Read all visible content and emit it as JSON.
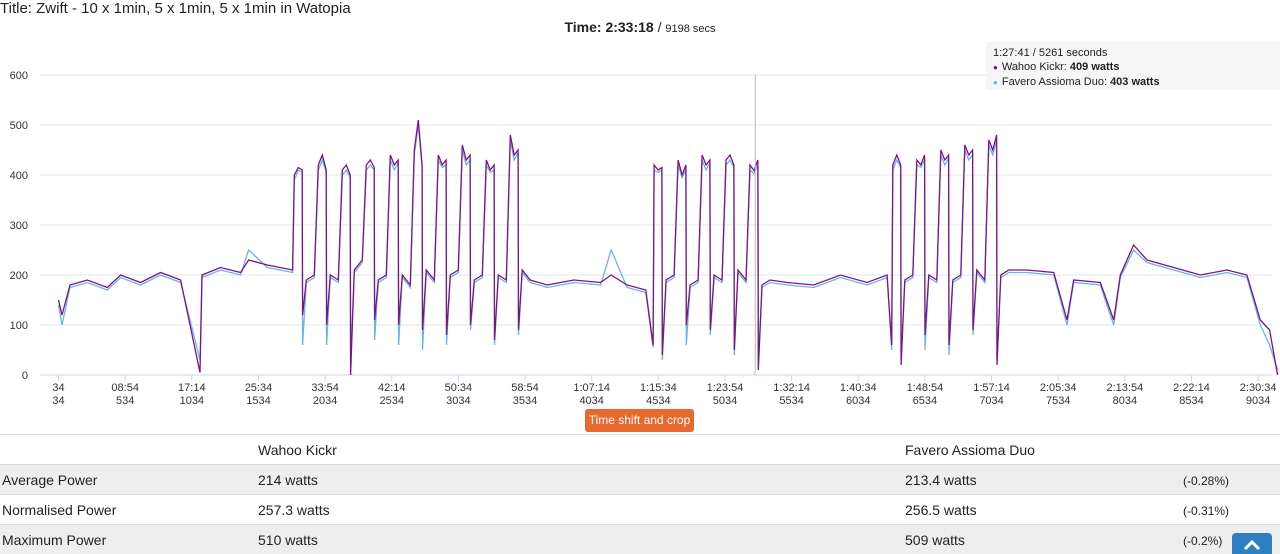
{
  "title": "Title: Zwift - 10 x 1min, 5 x 1min, 5 x 1min in Watopia",
  "time": "Time: 2:33:18",
  "duration": "9198 secs",
  "chart_data": {
    "type": "line",
    "xlim": [
      0,
      9198
    ],
    "ylim": [
      0,
      600
    ],
    "yticks": [
      0,
      100,
      200,
      300,
      400,
      500,
      600
    ],
    "xticks": [
      {
        "value": 34,
        "label": "34"
      },
      {
        "value": 534,
        "label": "08:54"
      },
      {
        "value": 1034,
        "label": "17:14"
      },
      {
        "value": 1534,
        "label": "25:34"
      },
      {
        "value": 2034,
        "label": "33:54"
      },
      {
        "value": 2534,
        "label": "42:14"
      },
      {
        "value": 3034,
        "label": "50:34"
      },
      {
        "value": 3534,
        "label": "58:54"
      },
      {
        "value": 4034,
        "label": "1:07:14"
      },
      {
        "value": 4534,
        "label": "1:15:34"
      },
      {
        "value": 5034,
        "label": "1:23:54"
      },
      {
        "value": 5534,
        "label": "1:32:14"
      },
      {
        "value": 6034,
        "label": "1:40:34"
      },
      {
        "value": 6534,
        "label": "1:48:54"
      },
      {
        "value": 7034,
        "label": "1:57:14"
      },
      {
        "value": 7534,
        "label": "2:05:34"
      },
      {
        "value": 8034,
        "label": "2:13:54"
      },
      {
        "value": 8534,
        "label": "2:22:14"
      },
      {
        "value": 9034,
        "label": "2:30:34"
      }
    ],
    "grid": true,
    "cursor_x": 5261,
    "x": [
      34,
      60,
      120,
      250,
      400,
      500,
      650,
      800,
      950,
      1095,
      1110,
      1250,
      1400,
      1460,
      1600,
      1790,
      1803,
      1833,
      1862,
      1865,
      1893,
      1953,
      1983,
      2013,
      2042,
      2045,
      2073,
      2133,
      2163,
      2193,
      2222,
      2225,
      2253,
      2313,
      2343,
      2373,
      2402,
      2405,
      2433,
      2493,
      2523,
      2553,
      2582,
      2585,
      2613,
      2673,
      2703,
      2733,
      2762,
      2765,
      2793,
      2853,
      2883,
      2913,
      2942,
      2945,
      2973,
      3033,
      3063,
      3093,
      3122,
      3125,
      3153,
      3213,
      3243,
      3273,
      3302,
      3305,
      3333,
      3393,
      3423,
      3453,
      3482,
      3485,
      3513,
      3573,
      3700,
      3900,
      4100,
      4180,
      4300,
      4440,
      4495,
      4502,
      4532,
      4561,
      4564,
      4592,
      4652,
      4682,
      4712,
      4741,
      4744,
      4772,
      4832,
      4862,
      4892,
      4921,
      4924,
      4952,
      5012,
      5042,
      5072,
      5101,
      5104,
      5132,
      5192,
      5222,
      5252,
      5281,
      5284,
      5312,
      5372,
      5500,
      5700,
      5900,
      6100,
      6250,
      6285,
      6293,
      6323,
      6352,
      6355,
      6383,
      6443,
      6473,
      6503,
      6532,
      6535,
      6563,
      6623,
      6653,
      6683,
      6712,
      6715,
      6743,
      6803,
      6833,
      6863,
      6892,
      6895,
      6923,
      6983,
      7013,
      7043,
      7072,
      7075,
      7103,
      7163,
      7300,
      7500,
      7600,
      7650,
      7850,
      7950,
      8000,
      8100,
      8200,
      8400,
      8600,
      8800,
      8950,
      9050,
      9120,
      9180
    ],
    "series": [
      {
        "name": "Favero Assioma Duo",
        "color": "#6cb4e4",
        "values": [
          140,
          100,
          175,
          185,
          170,
          195,
          180,
          200,
          185,
          30,
          195,
          210,
          200,
          250,
          215,
          205,
          390,
          410,
          405,
          60,
          185,
          195,
          410,
          430,
          405,
          60,
          195,
          185,
          400,
          410,
          395,
          30,
          205,
          225,
          410,
          420,
          410,
          70,
          185,
          195,
          430,
          410,
          425,
          60,
          195,
          175,
          440,
          500,
          415,
          50,
          205,
          185,
          430,
          415,
          420,
          60,
          195,
          205,
          450,
          420,
          430,
          90,
          185,
          195,
          420,
          405,
          410,
          60,
          195,
          185,
          470,
          430,
          445,
          80,
          205,
          185,
          175,
          185,
          180,
          250,
          175,
          165,
          55,
          410,
          405,
          410,
          30,
          185,
          195,
          420,
          395,
          410,
          60,
          175,
          185,
          430,
          410,
          425,
          80,
          195,
          185,
          420,
          430,
          415,
          40,
          205,
          185,
          410,
          403,
          420,
          20,
          175,
          185,
          180,
          175,
          195,
          180,
          195,
          50,
          410,
          430,
          415,
          30,
          185,
          195,
          420,
          415,
          430,
          50,
          195,
          185,
          440,
          420,
          435,
          40,
          185,
          195,
          450,
          430,
          440,
          80,
          205,
          185,
          460,
          440,
          470,
          30,
          195,
          205,
          205,
          200,
          100,
          185,
          180,
          100,
          195,
          250,
          225,
          210,
          195,
          205,
          195,
          100,
          60,
          10
        ]
      },
      {
        "name": "Wahoo Kickr",
        "color": "#7a1587",
        "values": [
          150,
          120,
          180,
          190,
          175,
          200,
          185,
          205,
          190,
          5,
          200,
          215,
          205,
          230,
          220,
          210,
          400,
          415,
          410,
          120,
          190,
          200,
          420,
          440,
          410,
          100,
          200,
          190,
          410,
          420,
          400,
          0,
          210,
          230,
          420,
          430,
          415,
          110,
          190,
          200,
          440,
          420,
          430,
          100,
          200,
          180,
          450,
          510,
          420,
          90,
          210,
          190,
          440,
          420,
          430,
          80,
          200,
          210,
          460,
          430,
          440,
          100,
          190,
          200,
          430,
          410,
          420,
          70,
          200,
          190,
          480,
          440,
          450,
          90,
          210,
          190,
          180,
          190,
          185,
          200,
          180,
          170,
          60,
          420,
          410,
          415,
          40,
          190,
          200,
          430,
          400,
          420,
          100,
          180,
          190,
          440,
          420,
          430,
          90,
          200,
          190,
          430,
          440,
          420,
          50,
          210,
          190,
          420,
          409,
          430,
          10,
          180,
          190,
          185,
          180,
          200,
          185,
          200,
          60,
          420,
          440,
          420,
          20,
          190,
          200,
          430,
          420,
          440,
          80,
          200,
          190,
          450,
          430,
          440,
          60,
          190,
          200,
          460,
          440,
          450,
          90,
          210,
          190,
          470,
          450,
          480,
          20,
          200,
          210,
          210,
          205,
          110,
          190,
          185,
          110,
          200,
          260,
          230,
          215,
          200,
          210,
          200,
          110,
          90,
          0
        ]
      }
    ]
  },
  "tooltip": {
    "header": "1:27:41 / 5261 seconds",
    "items": [
      {
        "label": "Wahoo Kickr:",
        "value": "409 watts",
        "color": "#7a1587"
      },
      {
        "label": "Favero Assioma Duo:",
        "value": "403 watts",
        "color": "#6cb4e4"
      }
    ]
  },
  "button": "Time shift and crop",
  "table": {
    "headers": [
      "Wahoo Kickr",
      "Favero Assioma Duo"
    ],
    "rows": [
      [
        "Average Power",
        "214 watts",
        "213.4 watts",
        "(-0.28%)"
      ],
      [
        "Normalised Power",
        "257.3 watts",
        "256.5 watts",
        "(-0.31%)"
      ],
      [
        "Maximum Power",
        "510 watts",
        "509 watts",
        "(-0.2%)"
      ]
    ]
  }
}
